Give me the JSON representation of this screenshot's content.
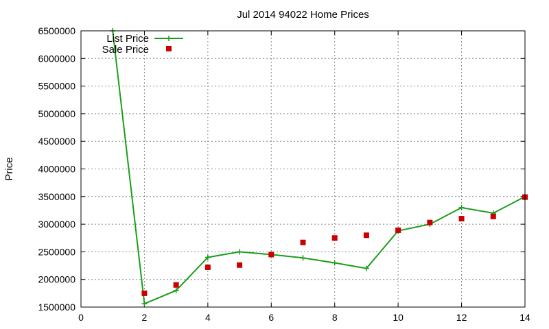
{
  "chart_data": {
    "type": "line",
    "title": "Jul 2014 94022 Home Prices",
    "xlabel": "",
    "ylabel": "Price",
    "xlim": [
      0,
      14
    ],
    "ylim": [
      1500000,
      6500000
    ],
    "xticks": [
      0,
      2,
      4,
      6,
      8,
      10,
      12,
      14
    ],
    "yticks": [
      1500000,
      2000000,
      2500000,
      3000000,
      3500000,
      4000000,
      4500000,
      5000000,
      5500000,
      6000000,
      6500000
    ],
    "grid": true,
    "legend_position": "top-left",
    "series": [
      {
        "name": "List Price",
        "style": "line-with-plus-markers",
        "color": "#1a9e1a",
        "x": [
          1,
          2,
          3,
          4,
          5,
          6,
          7,
          8,
          9,
          10,
          11,
          12,
          13,
          14
        ],
        "y": [
          6500000,
          1560000,
          1800000,
          2400000,
          2500000,
          2450000,
          2390000,
          2300000,
          2200000,
          2880000,
          3000000,
          3300000,
          3200000,
          3500000
        ]
      },
      {
        "name": "Sale Price",
        "style": "square-markers",
        "color": "#cc0000",
        "x": [
          2,
          3,
          4,
          5,
          6,
          7,
          8,
          9,
          10,
          11,
          12,
          13,
          14
        ],
        "y": [
          1750000,
          1900000,
          2220000,
          2260000,
          2450000,
          2670000,
          2750000,
          2800000,
          2890000,
          3030000,
          3100000,
          3140000,
          3490000
        ]
      }
    ]
  }
}
